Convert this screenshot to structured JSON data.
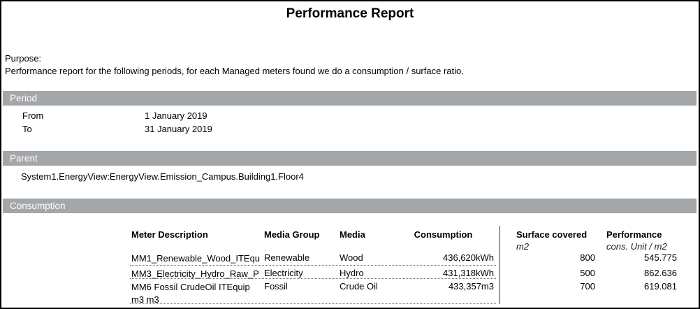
{
  "report": {
    "title": "Performance Report",
    "purpose_label": "Purpose:",
    "purpose_text": "Performance report for the following periods, for each Managed meters found we do a consumption / surface ratio."
  },
  "period": {
    "section_label": "Period",
    "from_label": "From",
    "from_value": "1 January 2019",
    "to_label": "To",
    "to_value": "31 January 2019"
  },
  "parent": {
    "section_label": "Parent",
    "path": "System1.EnergyView:EnergyView.Emission_Campus.Building1.Floor4"
  },
  "consumption": {
    "section_label": "Consumption",
    "columns": {
      "meter": "Meter Description",
      "media_group": "Media Group",
      "media": "Media",
      "consumption": "Consumption",
      "surface": "Surface covered",
      "surface_unit": "m2",
      "performance": "Performance",
      "performance_unit": "cons. Unit / m2"
    },
    "rows": [
      {
        "meter": "MM1_Renewable_Wood_ITEqu",
        "media_group": "Renewable",
        "media": "Wood",
        "consumption": "436,620kWh",
        "surface": "800",
        "performance": "545.775"
      },
      {
        "meter": "MM3_Electricity_Hydro_Raw_P",
        "media_group": "Electricity",
        "media": "Hydro",
        "consumption": "431,318kWh",
        "surface": "500",
        "performance": "862.636"
      },
      {
        "meter": "MM6 Fossil CrudeOil ITEquip m3 m3",
        "media_group": "Fossil",
        "media": "Crude Oil",
        "consumption": "433,357m3",
        "surface": "700",
        "performance": "619.081"
      }
    ]
  },
  "colors": {
    "section_bar": "#a3a7aa",
    "page_border": "#000000"
  }
}
